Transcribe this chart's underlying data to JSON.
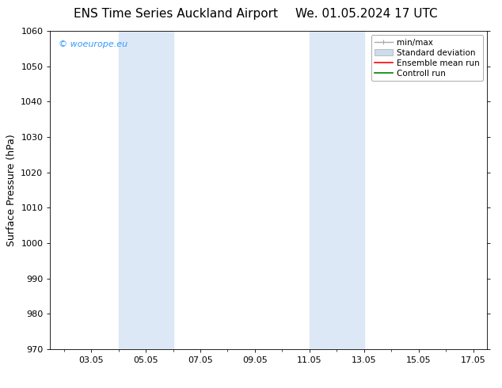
{
  "title_left": "ENS Time Series Auckland Airport",
  "title_right": "We. 01.05.2024 17 UTC",
  "ylabel": "Surface Pressure (hPa)",
  "ylim": [
    970,
    1060
  ],
  "yticks": [
    970,
    980,
    990,
    1000,
    1010,
    1020,
    1030,
    1040,
    1050,
    1060
  ],
  "xlim": [
    1.5,
    17.5
  ],
  "xtick_labels": [
    "03.05",
    "05.05",
    "07.05",
    "09.05",
    "11.05",
    "13.05",
    "15.05",
    "17.05"
  ],
  "xtick_positions": [
    3.0,
    5.0,
    7.0,
    9.0,
    11.0,
    13.0,
    15.0,
    17.0
  ],
  "shading_bands": [
    {
      "x_start": 4.0,
      "x_end": 6.0
    },
    {
      "x_start": 11.0,
      "x_end": 13.0
    }
  ],
  "shading_color": "#dce8f5",
  "background_color": "#ffffff",
  "watermark_text": "© woeurope.eu",
  "watermark_color": "#3399ff",
  "legend_items": [
    {
      "label": "min/max",
      "color": "#aaaaaa",
      "linestyle": "-",
      "linewidth": 1.0
    },
    {
      "label": "Standard deviation",
      "color": "#cddceb",
      "linestyle": "-",
      "linewidth": 6
    },
    {
      "label": "Ensemble mean run",
      "color": "#ff0000",
      "linestyle": "-",
      "linewidth": 1.2
    },
    {
      "label": "Controll run",
      "color": "#008000",
      "linestyle": "-",
      "linewidth": 1.2
    }
  ],
  "title_fontsize": 11,
  "axis_label_fontsize": 9,
  "tick_fontsize": 8,
  "legend_fontsize": 7.5,
  "watermark_fontsize": 8
}
